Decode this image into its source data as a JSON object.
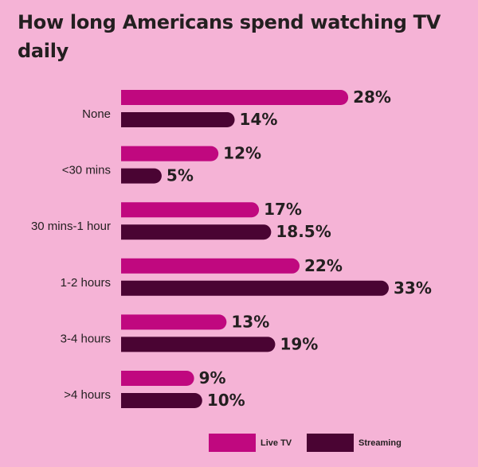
{
  "title": "How long Americans spend watching TV daily",
  "chart_data": {
    "type": "bar",
    "orientation": "horizontal",
    "title": "How long Americans spend watching TV daily",
    "categories": [
      "None",
      "<30 mins",
      "30 mins-1 hour",
      "1-2 hours",
      "3-4 hours",
      ">4 hours"
    ],
    "series": [
      {
        "name": "Live TV",
        "color": "#c0087f",
        "values": [
          28,
          12,
          17,
          22,
          13,
          9
        ],
        "labels": [
          "28%",
          "12%",
          "17%",
          "22%",
          "13%",
          "9%"
        ]
      },
      {
        "name": "Streaming",
        "color": "#4a0433",
        "values": [
          14,
          5,
          18.5,
          33,
          19,
          10
        ],
        "labels": [
          "14%",
          "5%",
          "18.5%",
          "33%",
          "19%",
          "10%"
        ]
      }
    ],
    "xlim": [
      0,
      33
    ],
    "grid": false,
    "legend_position": "bottom-right"
  }
}
